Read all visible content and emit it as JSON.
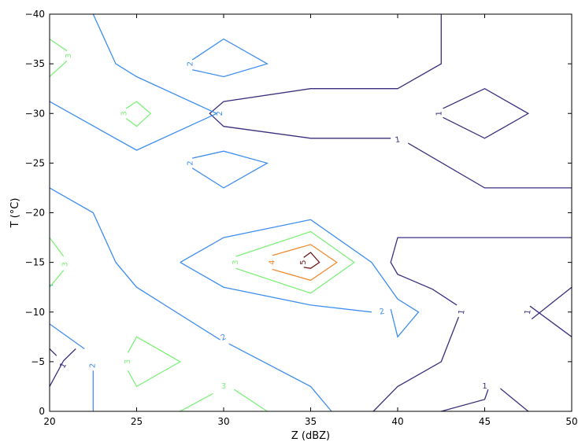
{
  "chart_data": {
    "type": "contour",
    "title": "",
    "xlabel": "Z (dBZ)",
    "ylabel": "T (°C)",
    "xlim": [
      20,
      50
    ],
    "ylim": [
      0,
      -40
    ],
    "x_inverted": false,
    "y_inverted": true,
    "grid": false,
    "xticks": [
      20,
      25,
      30,
      35,
      40,
      45,
      50
    ],
    "xtick_labels": [
      "20",
      "25",
      "30",
      "35",
      "40",
      "45",
      "50"
    ],
    "yticks": [
      0,
      -5,
      -10,
      -15,
      -20,
      -25,
      -30,
      -35,
      -40
    ],
    "ytick_labels": [
      "0",
      "−5",
      "−10",
      "−15",
      "−20",
      "−25",
      "−30",
      "−35",
      "−40"
    ],
    "level_colors": {
      "1": "#3a2f7e",
      "2": "#3e8ef0",
      "3": "#7ef07a",
      "4": "#f08a2e",
      "5": "#6e1a1a"
    },
    "contours": [
      {
        "level": 1,
        "points": [
          [
            20,
            -2.5
          ],
          [
            20.8,
            -5.1
          ],
          [
            21.5,
            -6.3
          ]
        ]
      },
      {
        "level": 1,
        "points": [
          [
            20,
            -6.3
          ],
          [
            20.4,
            -5.6
          ]
        ]
      },
      {
        "level": 1,
        "points": [
          [
            38.6,
            0
          ],
          [
            40,
            -2.5
          ],
          [
            42.5,
            -5
          ],
          [
            43.5,
            -9.5
          ]
        ]
      },
      {
        "level": 1,
        "points": [
          [
            43.4,
            -10.7
          ],
          [
            42,
            -12.3
          ],
          [
            40,
            -13.8
          ],
          [
            39.6,
            -15
          ],
          [
            40,
            -17.5
          ],
          [
            50,
            -17.5
          ]
        ]
      },
      {
        "level": 1,
        "points": [
          [
            42.5,
            0
          ],
          [
            45,
            -1.2
          ],
          [
            45.2,
            -2.2
          ]
        ]
      },
      {
        "level": 1,
        "points": [
          [
            45.9,
            -2.3
          ],
          [
            47.5,
            0
          ]
        ]
      },
      {
        "level": 1,
        "points": [
          [
            47.7,
            -9.3
          ],
          [
            50,
            -12.5
          ]
        ]
      },
      {
        "level": 1,
        "points": [
          [
            47.6,
            -10.6
          ],
          [
            50,
            -7.5
          ]
        ]
      },
      {
        "level": 1,
        "points": [
          [
            42.5,
            -40
          ],
          [
            42.5,
            -35
          ],
          [
            40,
            -32.5
          ],
          [
            35,
            -32.5
          ],
          [
            30,
            -31.2
          ],
          [
            29.2,
            -30
          ],
          [
            30,
            -28.7
          ],
          [
            35,
            -27.5
          ],
          [
            39.6,
            -27.5
          ]
        ]
      },
      {
        "level": 1,
        "points": [
          [
            40.6,
            -27
          ],
          [
            45,
            -22.5
          ],
          [
            50,
            -22.5
          ]
        ]
      },
      {
        "level": 1,
        "points": [
          [
            42.6,
            -30.5
          ],
          [
            45,
            -32.5
          ],
          [
            47.5,
            -30
          ],
          [
            45,
            -27.5
          ],
          [
            42.6,
            -29.6
          ]
        ]
      },
      {
        "level": 2,
        "points": [
          [
            22.5,
            0
          ],
          [
            22.5,
            -4.1
          ]
        ]
      },
      {
        "level": 2,
        "points": [
          [
            20,
            -8.8
          ],
          [
            22,
            -6.3
          ]
        ]
      },
      {
        "level": 2,
        "points": [
          [
            27.5,
            -15
          ],
          [
            30,
            -12.5
          ],
          [
            35,
            -10.7
          ],
          [
            38.5,
            -10
          ]
        ]
      },
      {
        "level": 2,
        "points": [
          [
            20.1,
            -12.7
          ]
        ]
      },
      {
        "level": 2,
        "points": [
          [
            20,
            -22.5
          ],
          [
            22.5,
            -20
          ],
          [
            23.8,
            -15
          ],
          [
            25,
            -12.5
          ],
          [
            29.8,
            -7.2
          ]
        ]
      },
      {
        "level": 2,
        "points": [
          [
            30.3,
            -6.8
          ],
          [
            35,
            -2.5
          ],
          [
            36.2,
            0
          ]
        ]
      },
      {
        "level": 2,
        "points": [
          [
            39.6,
            -10.3
          ],
          [
            40,
            -7.5
          ],
          [
            41.2,
            -10
          ],
          [
            40,
            -11.3
          ],
          [
            38.5,
            -15
          ],
          [
            35,
            -19.3
          ],
          [
            30,
            -17.5
          ],
          [
            27.5,
            -15
          ]
        ]
      },
      {
        "level": 2,
        "points": [
          [
            20,
            -31.2
          ],
          [
            25,
            -26.3
          ],
          [
            29.6,
            -30
          ]
        ]
      },
      {
        "level": 2,
        "points": [
          [
            22.5,
            -40
          ],
          [
            23.8,
            -35
          ],
          [
            25,
            -33.7
          ],
          [
            29.6,
            -30
          ]
        ]
      },
      {
        "level": 2,
        "points": [
          [
            28.2,
            -25.5
          ],
          [
            30,
            -26.2
          ],
          [
            32.5,
            -25
          ],
          [
            30,
            -22.5
          ],
          [
            28.2,
            -24.5
          ]
        ]
      },
      {
        "level": 2,
        "points": [
          [
            28.2,
            -35.4
          ],
          [
            30,
            -37.5
          ],
          [
            32.5,
            -35
          ],
          [
            30,
            -33.7
          ],
          [
            28.2,
            -34.4
          ]
        ]
      },
      {
        "level": 3,
        "points": [
          [
            20,
            -12.5
          ],
          [
            20.8,
            -14.2
          ]
        ]
      },
      {
        "level": 3,
        "points": [
          [
            20.8,
            -15.6
          ],
          [
            20,
            -17.5
          ]
        ]
      },
      {
        "level": 3,
        "points": [
          [
            20,
            -33.7
          ],
          [
            21,
            -35.3
          ]
        ]
      },
      {
        "level": 3,
        "points": [
          [
            21,
            -36.3
          ],
          [
            20,
            -37.5
          ]
        ]
      },
      {
        "level": 3,
        "points": [
          [
            24.4,
            -29.5
          ],
          [
            25,
            -28.7
          ],
          [
            25.8,
            -30
          ],
          [
            25,
            -31.2
          ],
          [
            24.4,
            -30.5
          ]
        ]
      },
      {
        "level": 3,
        "points": [
          [
            27.5,
            0
          ],
          [
            29.4,
            -1.8
          ]
        ]
      },
      {
        "level": 3,
        "points": [
          [
            30.6,
            -2.2
          ],
          [
            32.5,
            0
          ]
        ]
      },
      {
        "level": 3,
        "points": [
          [
            24.5,
            -4.1
          ],
          [
            25,
            -2.5
          ],
          [
            27.5,
            -5
          ],
          [
            25,
            -7.5
          ],
          [
            24.5,
            -5.9
          ]
        ]
      },
      {
        "level": 3,
        "points": [
          [
            30.7,
            -14.4
          ],
          [
            35,
            -11.9
          ],
          [
            37.5,
            -15
          ],
          [
            35,
            -18.1
          ],
          [
            30.7,
            -15.6
          ]
        ]
      },
      {
        "level": 4,
        "points": [
          [
            32.8,
            -15.7
          ],
          [
            35,
            -16.8
          ],
          [
            36.5,
            -15
          ],
          [
            35,
            -13.2
          ],
          [
            32.8,
            -14.3
          ]
        ]
      },
      {
        "level": 5,
        "points": [
          [
            34.6,
            -15.5
          ],
          [
            35,
            -16
          ],
          [
            35.5,
            -15
          ],
          [
            35,
            -14.4
          ],
          [
            34.6,
            -14.5
          ]
        ]
      }
    ],
    "contour_labels": [
      {
        "text": "1",
        "level": 1,
        "x": 20.8,
        "y": -4.6,
        "angle": -60
      },
      {
        "text": "2",
        "level": 2,
        "x": 22.5,
        "y": -4.6,
        "angle": -90
      },
      {
        "text": "3",
        "level": 3,
        "x": 24.5,
        "y": -5,
        "angle": -90
      },
      {
        "text": "3",
        "level": 3,
        "x": 30,
        "y": -2.5,
        "angle": 0
      },
      {
        "text": "2",
        "level": 2,
        "x": 30,
        "y": -7.4,
        "angle": -25
      },
      {
        "text": "1",
        "level": 1,
        "x": 45,
        "y": -2.5,
        "angle": 0
      },
      {
        "text": "1",
        "level": 1,
        "x": 43.7,
        "y": -10,
        "angle": -80
      },
      {
        "text": "1",
        "level": 1,
        "x": 47.5,
        "y": -10,
        "angle": -80
      },
      {
        "text": "2",
        "level": 2,
        "x": 39.1,
        "y": -10,
        "angle": -10
      },
      {
        "text": "3",
        "level": 3,
        "x": 20.9,
        "y": -14.8,
        "angle": -90
      },
      {
        "text": "3",
        "level": 3,
        "x": 30.7,
        "y": -15,
        "angle": -90
      },
      {
        "text": "4",
        "level": 4,
        "x": 32.8,
        "y": -15,
        "angle": -90
      },
      {
        "text": "5",
        "level": 5,
        "x": 34.6,
        "y": -15,
        "angle": -90
      },
      {
        "text": "2",
        "level": 2,
        "x": 28.1,
        "y": -25,
        "angle": -90
      },
      {
        "text": "3",
        "level": 3,
        "x": 24.3,
        "y": -30,
        "angle": -90
      },
      {
        "text": "2",
        "level": 2,
        "x": 29.8,
        "y": -30,
        "angle": -90
      },
      {
        "text": "1",
        "level": 1,
        "x": 40,
        "y": -27.3,
        "angle": -10
      },
      {
        "text": "1",
        "level": 1,
        "x": 42.4,
        "y": -30,
        "angle": -90
      },
      {
        "text": "3",
        "level": 3,
        "x": 21.1,
        "y": -35.8,
        "angle": -90
      },
      {
        "text": "2",
        "level": 2,
        "x": 28.1,
        "y": -35,
        "angle": -90
      }
    ]
  }
}
